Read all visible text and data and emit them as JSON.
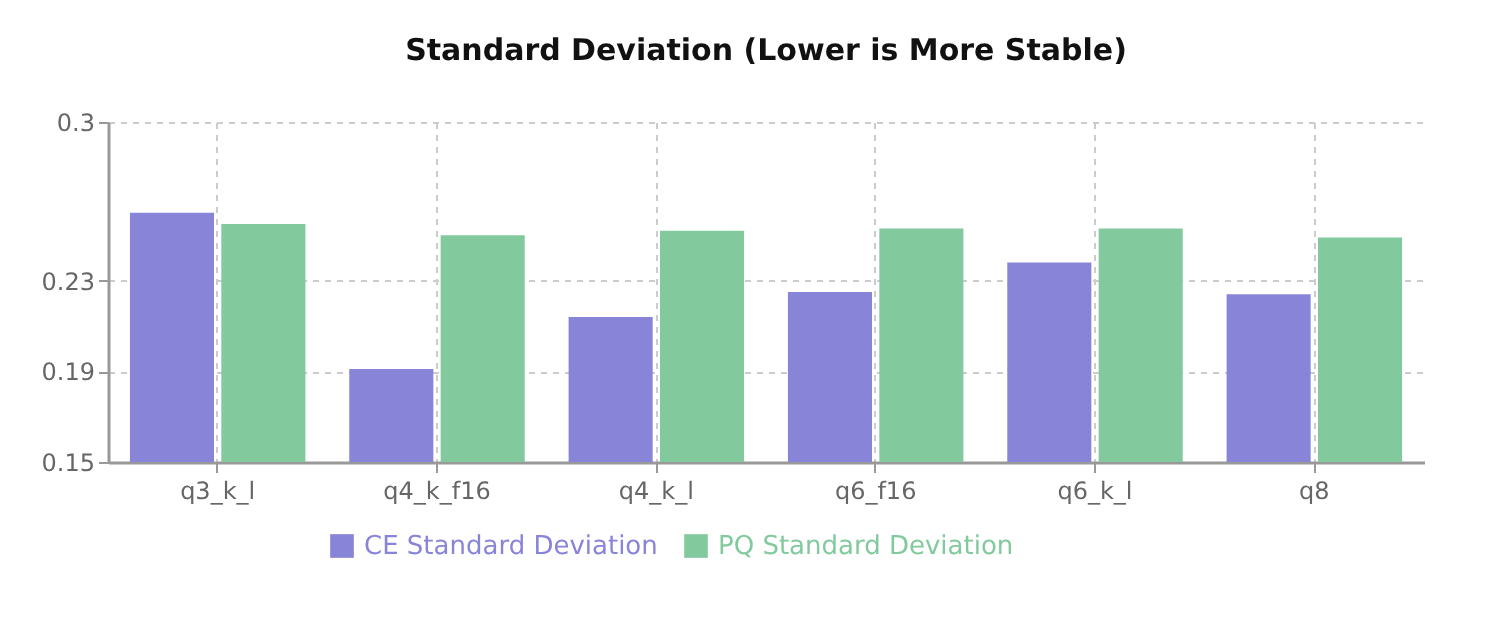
{
  "chart_data": {
    "type": "bar",
    "title": "Standard Deviation (Lower is More Stable)",
    "categories": [
      "q3_k_l",
      "q4_k_f16",
      "q4_k_l",
      "q6_f16",
      "q6_k_l",
      "q8"
    ],
    "series": [
      {
        "name": "CE Standard Deviation",
        "color": "#8884d8",
        "values": [
          0.26,
          0.191,
          0.214,
          0.225,
          0.238,
          0.224
        ]
      },
      {
        "name": "PQ Standard Deviation",
        "color": "#82ca9d",
        "values": [
          0.255,
          0.25,
          0.252,
          0.253,
          0.253,
          0.249
        ]
      }
    ],
    "ylim": [
      0.15,
      0.3
    ],
    "yticks": [
      0.15,
      0.19,
      0.23,
      0.3
    ],
    "grid": true,
    "legend": "bottom"
  }
}
